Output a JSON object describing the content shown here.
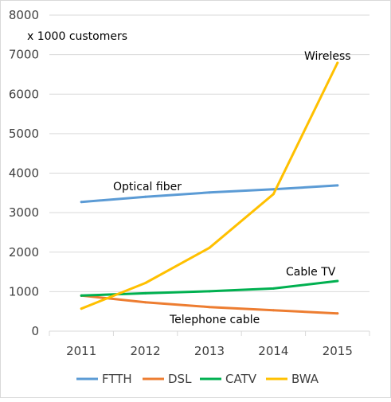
{
  "chart_data": {
    "type": "line",
    "categories": [
      "2011",
      "2012",
      "2013",
      "2014",
      "2015"
    ],
    "ylim": [
      0,
      8000
    ],
    "yticks": [
      0,
      1000,
      2000,
      3000,
      4000,
      5000,
      6000,
      7000,
      8000
    ],
    "ylabel": "x 1000 customers",
    "grid": "horizontal",
    "legend_position": "bottom",
    "series": [
      {
        "name": "FTTH",
        "color": "#5b9bd5",
        "values": [
          3270,
          3400,
          3510,
          3590,
          3690
        ]
      },
      {
        "name": "DSL",
        "color": "#ed7d31",
        "values": [
          900,
          730,
          610,
          530,
          450
        ]
      },
      {
        "name": "CATV",
        "color": "#00b050",
        "values": [
          900,
          960,
          1010,
          1080,
          1270
        ]
      },
      {
        "name": "BWA",
        "color": "#ffc000",
        "values": [
          570,
          1220,
          2110,
          3470,
          6790
        ]
      }
    ],
    "annotations": [
      {
        "text": "Optical fiber",
        "series": "FTTH"
      },
      {
        "text": "Telephone cable",
        "series": "DSL"
      },
      {
        "text": "Cable TV",
        "series": "CATV"
      },
      {
        "text": "Wireless",
        "series": "BWA"
      }
    ]
  }
}
